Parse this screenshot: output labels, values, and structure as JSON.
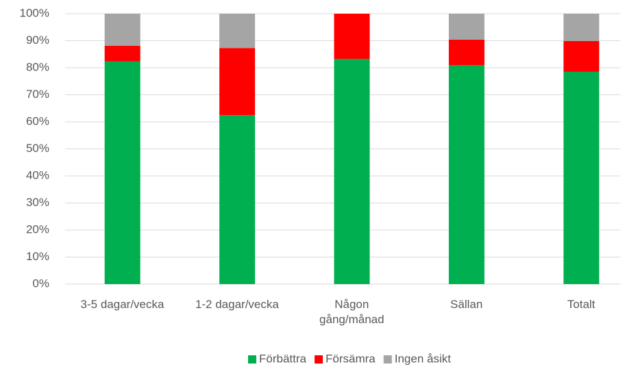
{
  "chart_data": {
    "type": "stacked_bar",
    "categories": [
      "3-5 dagar/vecka",
      "1-2 dagar/vecka",
      "Någon\ngång/månad",
      "Sällan",
      "Totalt"
    ],
    "series": [
      {
        "name": "Förbättra",
        "color": "#00b050",
        "values": [
          82.4,
          62.5,
          83.3,
          81.0,
          78.5
        ]
      },
      {
        "name": "Försämra",
        "color": "#ff0000",
        "values": [
          5.7,
          24.8,
          16.7,
          9.4,
          11.4
        ]
      },
      {
        "name": "Ingen åsikt",
        "color": "#a5a5a5",
        "values": [
          11.9,
          12.7,
          0,
          9.6,
          10.1
        ]
      }
    ],
    "ylim": [
      0,
      100
    ],
    "yticks": [
      {
        "value": 0,
        "label": "0%"
      },
      {
        "value": 10,
        "label": "10%"
      },
      {
        "value": 20,
        "label": "20%"
      },
      {
        "value": 30,
        "label": "30%"
      },
      {
        "value": 40,
        "label": "40%"
      },
      {
        "value": 50,
        "label": "50%"
      },
      {
        "value": 60,
        "label": "60%"
      },
      {
        "value": 70,
        "label": "70%"
      },
      {
        "value": 80,
        "label": "80%"
      },
      {
        "value": 90,
        "label": "90%"
      },
      {
        "value": 100,
        "label": "100%"
      }
    ],
    "grid": true,
    "legend": "bottom"
  }
}
